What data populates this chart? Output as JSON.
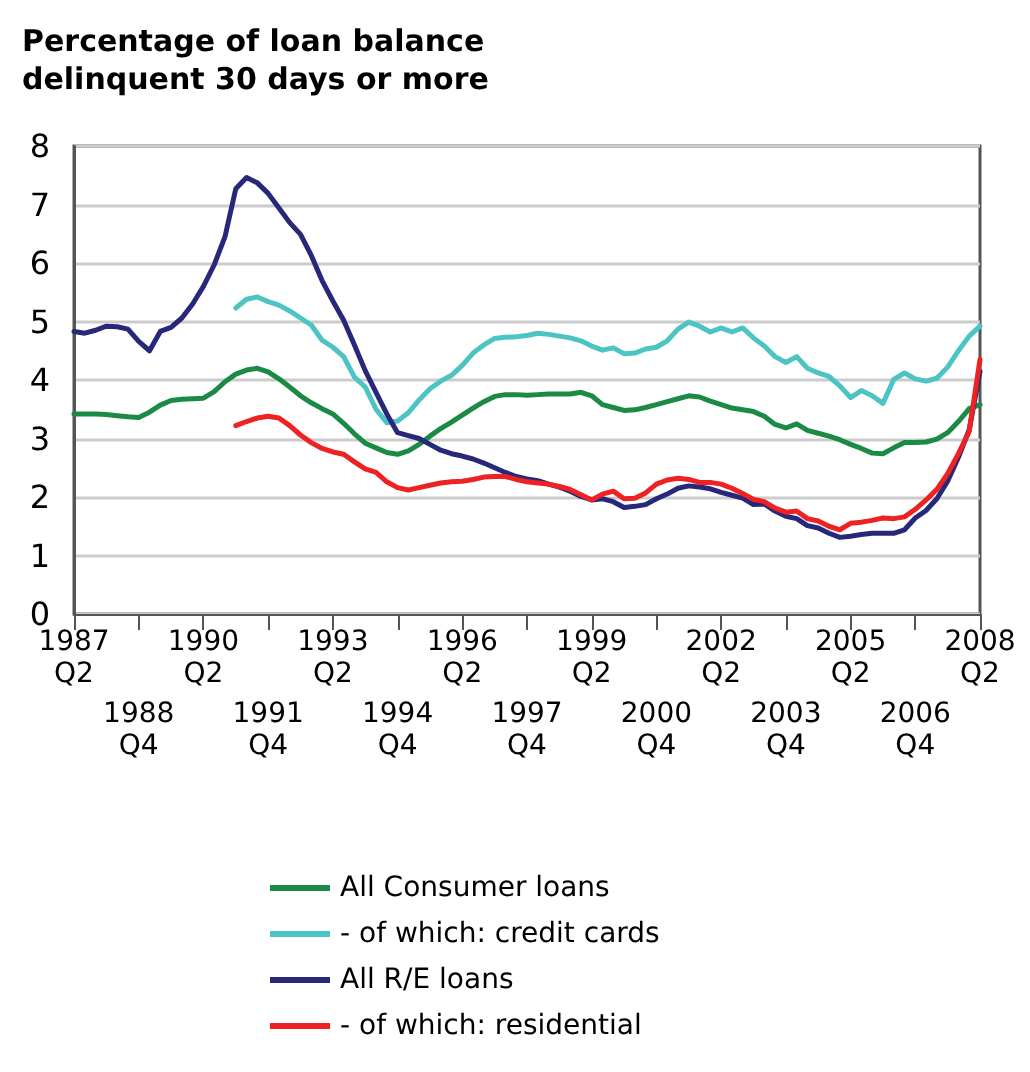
{
  "chart_data": {
    "type": "line",
    "title": "Percentage of loan balance\ndelinquent 30 days or more",
    "categories": [
      "1987\nQ2",
      null,
      null,
      null,
      null,
      null,
      "1988\nQ4",
      null,
      null,
      null,
      null,
      null,
      "1990\nQ2",
      null,
      null,
      null,
      null,
      null,
      "1991\nQ4",
      null,
      null,
      null,
      null,
      null,
      "1993\nQ2",
      null,
      null,
      null,
      null,
      null,
      "1994\nQ4",
      null,
      null,
      null,
      null,
      null,
      "1996\nQ2",
      null,
      null,
      null,
      null,
      null,
      "1997\nQ4",
      null,
      null,
      null,
      null,
      null,
      "1999\nQ2",
      null,
      null,
      null,
      null,
      null,
      "2000\nQ4",
      null,
      null,
      null,
      null,
      null,
      "2002\nQ2",
      null,
      null,
      null,
      null,
      null,
      "2003\nQ4",
      null,
      null,
      null,
      null,
      null,
      "2005\nQ2",
      null,
      null,
      null,
      null,
      null,
      "2006\nQ4",
      null,
      null,
      null,
      null,
      null,
      "2008\nQ2"
    ],
    "ylim": [
      0,
      8
    ],
    "yticks": [
      0,
      1,
      2,
      3,
      4,
      5,
      6,
      7,
      8
    ],
    "grid": "y",
    "legend": "bottom",
    "marker": "none",
    "line_style": "solid",
    "series": [
      {
        "name": "All Consumer loans",
        "color": "#1a8a45",
        "values": [
          3.42,
          3.42,
          3.42,
          3.41,
          3.39,
          3.37,
          3.36,
          3.45,
          3.57,
          3.65,
          3.67,
          3.68,
          3.69,
          3.8,
          3.97,
          4.1,
          4.17,
          4.2,
          4.14,
          4.02,
          3.88,
          3.73,
          3.61,
          3.51,
          3.42,
          3.26,
          3.08,
          2.92,
          2.84,
          2.76,
          2.73,
          2.79,
          2.9,
          3.04,
          3.17,
          3.28,
          3.4,
          3.52,
          3.63,
          3.72,
          3.75,
          3.75,
          3.74,
          3.75,
          3.76,
          3.76,
          3.76,
          3.79,
          3.73,
          3.58,
          3.53,
          3.48,
          3.49,
          3.53,
          3.58,
          3.63,
          3.68,
          3.73,
          3.71,
          3.64,
          3.58,
          3.52,
          3.49,
          3.46,
          3.38,
          3.24,
          3.18,
          3.25,
          3.14,
          3.09,
          3.04,
          2.98,
          2.9,
          2.83,
          2.75,
          2.74,
          2.84,
          2.93,
          2.93,
          2.94,
          2.99,
          3.1,
          3.29,
          3.51,
          3.58
        ]
      },
      {
        "name": "- of which: credit cards",
        "color": "#4dc4c4",
        "values": [
          null,
          null,
          null,
          null,
          null,
          null,
          null,
          null,
          null,
          null,
          null,
          null,
          null,
          null,
          null,
          5.23,
          5.38,
          5.42,
          5.34,
          5.28,
          5.18,
          5.06,
          4.94,
          4.68,
          4.56,
          4.4,
          4.05,
          3.88,
          3.5,
          3.27,
          3.3,
          3.44,
          3.66,
          3.85,
          3.98,
          4.08,
          4.25,
          4.46,
          4.6,
          4.71,
          4.73,
          4.74,
          4.76,
          4.8,
          4.78,
          4.75,
          4.72,
          4.67,
          4.58,
          4.51,
          4.55,
          4.45,
          4.46,
          4.53,
          4.56,
          4.67,
          4.87,
          4.99,
          4.92,
          4.82,
          4.89,
          4.82,
          4.89,
          4.72,
          4.58,
          4.4,
          4.3,
          4.4,
          4.2,
          4.12,
          4.06,
          3.9,
          3.7,
          3.82,
          3.73,
          3.6,
          4.01,
          4.12,
          4.02,
          3.98,
          4.03,
          4.22,
          4.5,
          4.75,
          4.92
        ]
      },
      {
        "name": "All R/E loans",
        "color": "#27287a",
        "values": [
          4.83,
          4.8,
          4.85,
          4.92,
          4.91,
          4.87,
          4.66,
          4.5,
          4.83,
          4.9,
          5.06,
          5.3,
          5.6,
          5.97,
          6.45,
          7.27,
          7.46,
          7.37,
          7.19,
          6.94,
          6.69,
          6.49,
          6.13,
          5.7,
          5.35,
          5.02,
          4.6,
          4.16,
          3.79,
          3.42,
          3.1,
          3.05,
          3.0,
          2.9,
          2.8,
          2.74,
          2.7,
          2.65,
          2.58,
          2.5,
          2.42,
          2.35,
          2.31,
          2.28,
          2.22,
          2.17,
          2.1,
          2.01,
          1.95,
          1.97,
          1.92,
          1.82,
          1.84,
          1.87,
          1.97,
          2.05,
          2.15,
          2.19,
          2.17,
          2.14,
          2.08,
          2.03,
          1.98,
          1.87,
          1.88,
          1.76,
          1.67,
          1.63,
          1.51,
          1.47,
          1.38,
          1.31,
          1.33,
          1.36,
          1.38,
          1.38,
          1.38,
          1.44,
          1.64,
          1.77,
          1.97,
          2.27,
          2.68,
          3.15,
          4.15
        ]
      },
      {
        "name": "- of which: residential",
        "color": "#ee2222",
        "values": [
          null,
          null,
          null,
          null,
          null,
          null,
          null,
          null,
          null,
          null,
          null,
          null,
          null,
          null,
          null,
          3.22,
          3.29,
          3.35,
          3.38,
          3.35,
          3.22,
          3.06,
          2.93,
          2.83,
          2.77,
          2.73,
          2.6,
          2.48,
          2.42,
          2.26,
          2.16,
          2.12,
          2.16,
          2.2,
          2.24,
          2.26,
          2.27,
          2.3,
          2.34,
          2.35,
          2.35,
          2.3,
          2.26,
          2.24,
          2.22,
          2.18,
          2.13,
          2.04,
          1.95,
          2.05,
          2.1,
          1.97,
          1.98,
          2.07,
          2.22,
          2.29,
          2.32,
          2.3,
          2.25,
          2.25,
          2.22,
          2.15,
          2.06,
          1.96,
          1.92,
          1.81,
          1.74,
          1.76,
          1.63,
          1.59,
          1.5,
          1.44,
          1.55,
          1.57,
          1.6,
          1.64,
          1.63,
          1.66,
          1.79,
          1.95,
          2.13,
          2.4,
          2.74,
          3.12,
          4.35
        ]
      }
    ]
  }
}
